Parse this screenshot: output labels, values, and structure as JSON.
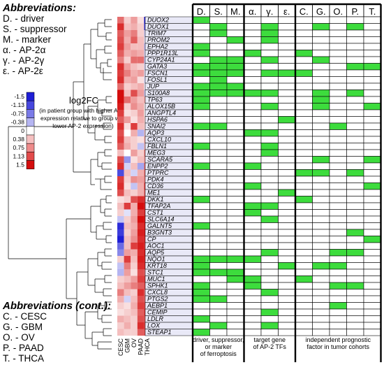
{
  "abbreviations": {
    "title": "Abbreviations:",
    "items": [
      "D. - driver",
      "S. - suppressor",
      "M. - marker",
      "α. - AP-2α",
      "γ. - AP-2γ",
      "ε. - AP-2ε"
    ]
  },
  "abbreviations_cont": {
    "title": "Abbreviations (cont.):",
    "items": [
      "C. - CESC",
      "G. - GBM",
      "O. - OV",
      "P. - PAAD",
      "T. - THCA"
    ]
  },
  "legend": {
    "title": "log2FC",
    "note": "(in patient group with higher AP-2 expression relative to group with lower AP-2 expression)",
    "ticks": [
      "-1.5",
      "-1.13",
      "-0.75",
      "-0.38",
      "0",
      "0.38",
      "0.75",
      "1.13",
      "1.5"
    ],
    "colors": [
      "#1f1fd6",
      "#4747de",
      "#7a7ae8",
      "#b5b5f2",
      "#ffffff",
      "#f5c0c0",
      "#ee8a8a",
      "#e24a4a",
      "#d40d0d"
    ]
  },
  "colors": {
    "green": "#3ddc3d",
    "red_strong": "#d40d0d",
    "blue_strong": "#1f1fd6"
  },
  "chart_data": {
    "type": "heatmap",
    "heatmap_columns": [
      "CESC",
      "GBM",
      "OV",
      "PAAD",
      "THCA"
    ],
    "genes": [
      "DUOX2",
      "DUOX1",
      "TRIM7",
      "PROM2",
      "EPHA2",
      "PPP1R13L",
      "CYP24A1",
      "GATA3",
      "FSCN1",
      "FOSL1",
      "JUP",
      "S100A8",
      "TP63",
      "ALOX15B",
      "ANGPTL4",
      "HSPA6",
      "SNAI2",
      "AQP3",
      "CXCL10",
      "FBLN1",
      "MEG3",
      "SCARA5",
      "ENPP2",
      "PTPRC",
      "PDK4",
      "CD36",
      "ME1",
      "DKK1",
      "TFAP2A",
      "CST1",
      "SLC6A14",
      "GALNT5",
      "B3GNT3",
      "CP",
      "AOC1",
      "AQP5",
      "NQO1",
      "KRT18",
      "STC1",
      "MUC1",
      "SPHK1",
      "CXCL8",
      "PTGS2",
      "AEBP1",
      "CEMIP",
      "LDLR",
      "LOX",
      "STEAP1"
    ],
    "log2fc": [
      [
        0.9,
        0.3,
        0.6,
        0.2,
        -1.5
      ],
      [
        1.3,
        0.4,
        0.5,
        0.3,
        -1.3
      ],
      [
        1.0,
        0.6,
        0.8,
        0.3,
        -0.4
      ],
      [
        1.1,
        0.5,
        1.0,
        0.4,
        -0.2
      ],
      [
        1.2,
        0.6,
        0.4,
        0.4,
        -0.5
      ],
      [
        1.0,
        0.5,
        0.6,
        0.5,
        -0.3
      ],
      [
        0.8,
        0.3,
        0.9,
        0.9,
        -0.4
      ],
      [
        1.3,
        0.6,
        0.4,
        0.3,
        -0.3
      ],
      [
        1.2,
        0.8,
        0.5,
        0.6,
        -0.2
      ],
      [
        1.3,
        0.5,
        0.6,
        0.2,
        -0.3
      ],
      [
        0.9,
        0.3,
        0.4,
        0.5,
        -0.1
      ],
      [
        1.5,
        0.4,
        1.1,
        0.6,
        -0.4
      ],
      [
        1.5,
        0.9,
        0.6,
        0.4,
        0.6
      ],
      [
        1.4,
        0.3,
        0.7,
        0.5,
        0.1
      ],
      [
        1.2,
        0.2,
        0.3,
        0.6,
        0.0
      ],
      [
        1.0,
        0.6,
        0.2,
        0.5,
        0.3
      ],
      [
        1.3,
        0.2,
        1.2,
        0.4,
        0.3
      ],
      [
        1.1,
        0.0,
        0.5,
        -0.5,
        0.4
      ],
      [
        1.2,
        0.4,
        0.3,
        0.2,
        0.6
      ],
      [
        1.0,
        0.5,
        0.3,
        -0.4,
        0.5
      ],
      [
        0.4,
        0.0,
        0.6,
        0.3,
        0.9
      ],
      [
        1.1,
        -0.7,
        0.2,
        0.4,
        0.7
      ],
      [
        1.3,
        -0.3,
        0.4,
        -0.6,
        1.0
      ],
      [
        -1.2,
        0.4,
        -0.3,
        0.5,
        1.0
      ],
      [
        1.2,
        0.3,
        0.7,
        0.6,
        0.9
      ],
      [
        1.3,
        0.2,
        -0.4,
        0.5,
        1.3
      ],
      [
        1.1,
        0.4,
        0.3,
        0.5,
        1.1
      ],
      [
        0.2,
        0.3,
        1.1,
        1.3,
        1.3
      ],
      [
        0.4,
        1.2,
        0.5,
        1.5,
        1.4
      ],
      [
        0.3,
        -0.2,
        0.5,
        1.2,
        1.4
      ],
      [
        -0.4,
        0.3,
        0.6,
        1.5,
        1.5
      ],
      [
        -1.4,
        0.4,
        0.5,
        1.3,
        1.5
      ],
      [
        -1.3,
        0.3,
        0.6,
        1.4,
        1.5
      ],
      [
        -1.5,
        0.4,
        0.7,
        1.3,
        1.4
      ],
      [
        -1.0,
        0.4,
        1.2,
        1.4,
        1.3
      ],
      [
        -0.8,
        0.6,
        0.5,
        1.3,
        1.5
      ],
      [
        0.3,
        1.2,
        0.4,
        1.4,
        1.4
      ],
      [
        -0.4,
        0.8,
        0.3,
        1.3,
        1.4
      ],
      [
        -0.5,
        0.6,
        0.2,
        1.1,
        1.0
      ],
      [
        0.3,
        0.4,
        0.6,
        1.2,
        1.3
      ],
      [
        0.4,
        0.6,
        0.8,
        1.0,
        1.2
      ],
      [
        0.8,
        0.4,
        0.3,
        1.3,
        0.9
      ],
      [
        0.5,
        -0.3,
        0.4,
        1.1,
        1.0
      ],
      [
        0.3,
        0.2,
        0.5,
        1.2,
        1.2
      ],
      [
        0.2,
        0.3,
        0.4,
        1.0,
        1.3
      ],
      [
        0.5,
        0.4,
        0.3,
        1.1,
        1.1
      ],
      [
        0.3,
        0.5,
        0.3,
        1.3,
        1.2
      ],
      [
        0.4,
        0.3,
        0.3,
        1.0,
        1.1
      ]
    ],
    "matrix_columns": [
      "D.",
      "S.",
      "M.",
      "α.",
      "γ.",
      "ε.",
      "C.",
      "G.",
      "O.",
      "P.",
      "T."
    ],
    "matrix_groups": [
      "driver, suppressor, or marker of ferroptosis",
      "target gene of AP-2 TFs",
      "independent prognostic factor in tumor cohorts"
    ],
    "matrix": [
      [
        1,
        0,
        0,
        0,
        0,
        0,
        0,
        0,
        0,
        0,
        0
      ],
      [
        0,
        1,
        0,
        0,
        1,
        0,
        0,
        1,
        0,
        1,
        0
      ],
      [
        0,
        1,
        0,
        0,
        1,
        0,
        0,
        0,
        0,
        0,
        0
      ],
      [
        0,
        0,
        1,
        0,
        1,
        0,
        0,
        0,
        0,
        0,
        0
      ],
      [
        1,
        0,
        0,
        0,
        0,
        0,
        0,
        0,
        0,
        0,
        0
      ],
      [
        1,
        0,
        0,
        1,
        0,
        0,
        1,
        0,
        0,
        0,
        0
      ],
      [
        0,
        1,
        1,
        0,
        1,
        0,
        0,
        1,
        0,
        0,
        0
      ],
      [
        1,
        1,
        1,
        0,
        0,
        0,
        0,
        0,
        0,
        1,
        1
      ],
      [
        1,
        1,
        1,
        0,
        1,
        1,
        1,
        0,
        0,
        0,
        0
      ],
      [
        0,
        1,
        0,
        0,
        0,
        0,
        0,
        0,
        0,
        0,
        0
      ],
      [
        1,
        1,
        1,
        0,
        0,
        0,
        0,
        0,
        0,
        0,
        0
      ],
      [
        1,
        1,
        1,
        1,
        1,
        0,
        0,
        1,
        0,
        1,
        0
      ],
      [
        1,
        0,
        0,
        0,
        0,
        0,
        0,
        1,
        0,
        0,
        0
      ],
      [
        1,
        0,
        0,
        0,
        1,
        0,
        0,
        1,
        0,
        0,
        1
      ],
      [
        0,
        0,
        0,
        0,
        0,
        0,
        0,
        0,
        0,
        0,
        0
      ],
      [
        0,
        0,
        0,
        0,
        0,
        1,
        0,
        0,
        0,
        0,
        0
      ],
      [
        1,
        1,
        0,
        0,
        0,
        0,
        0,
        0,
        1,
        0,
        0
      ],
      [
        0,
        0,
        0,
        1,
        1,
        0,
        0,
        0,
        0,
        0,
        0
      ],
      [
        0,
        0,
        0,
        0,
        0,
        0,
        0,
        0,
        0,
        0,
        0
      ],
      [
        1,
        0,
        0,
        0,
        1,
        0,
        0,
        0,
        0,
        0,
        0
      ],
      [
        0,
        0,
        0,
        0,
        1,
        0,
        0,
        0,
        0,
        0,
        0
      ],
      [
        0,
        0,
        0,
        0,
        0,
        0,
        0,
        1,
        0,
        0,
        1
      ],
      [
        1,
        0,
        0,
        1,
        0,
        0,
        0,
        0,
        0,
        0,
        0
      ],
      [
        0,
        0,
        0,
        0,
        0,
        0,
        1,
        1,
        0,
        1,
        0
      ],
      [
        0,
        0,
        0,
        0,
        0,
        0,
        0,
        0,
        0,
        0,
        0
      ],
      [
        0,
        0,
        0,
        1,
        0,
        0,
        0,
        0,
        0,
        0,
        1
      ],
      [
        0,
        0,
        0,
        0,
        0,
        1,
        0,
        0,
        0,
        0,
        0
      ],
      [
        1,
        0,
        0,
        0,
        0,
        0,
        1,
        0,
        0,
        0,
        0
      ],
      [
        0,
        0,
        0,
        1,
        1,
        0,
        0,
        0,
        0,
        0,
        0
      ],
      [
        0,
        0,
        0,
        1,
        0,
        0,
        0,
        0,
        0,
        0,
        0
      ],
      [
        0,
        0,
        0,
        0,
        1,
        0,
        0,
        0,
        0,
        0,
        0
      ],
      [
        1,
        0,
        0,
        0,
        0,
        0,
        0,
        0,
        0,
        0,
        0
      ],
      [
        0,
        0,
        0,
        0,
        0,
        0,
        0,
        0,
        0,
        1,
        0
      ],
      [
        0,
        0,
        0,
        0,
        0,
        0,
        0,
        0,
        0,
        0,
        1
      ],
      [
        0,
        0,
        0,
        0,
        0,
        0,
        0,
        0,
        0,
        0,
        0
      ],
      [
        0,
        0,
        0,
        0,
        1,
        0,
        0,
        0,
        1,
        1,
        0
      ],
      [
        1,
        1,
        1,
        1,
        0,
        0,
        0,
        0,
        0,
        0,
        0
      ],
      [
        1,
        0,
        0,
        0,
        0,
        1,
        0,
        1,
        1,
        0,
        0
      ],
      [
        1,
        1,
        1,
        0,
        0,
        0,
        0,
        0,
        0,
        0,
        0
      ],
      [
        0,
        0,
        1,
        1,
        0,
        0,
        1,
        0,
        0,
        0,
        0
      ],
      [
        1,
        0,
        0,
        1,
        0,
        0,
        0,
        0,
        1,
        1,
        0
      ],
      [
        1,
        0,
        0,
        0,
        1,
        0,
        0,
        0,
        0,
        0,
        0
      ],
      [
        1,
        1,
        0,
        0,
        0,
        0,
        0,
        0,
        0,
        0,
        0
      ],
      [
        0,
        0,
        0,
        0,
        0,
        0,
        0,
        0,
        1,
        0,
        0
      ],
      [
        0,
        0,
        0,
        0,
        1,
        0,
        0,
        0,
        0,
        0,
        0
      ],
      [
        1,
        0,
        0,
        0,
        0,
        0,
        0,
        0,
        0,
        0,
        0
      ],
      [
        0,
        1,
        0,
        0,
        1,
        0,
        0,
        0,
        0,
        0,
        0
      ],
      [
        1,
        0,
        0,
        0,
        0,
        0,
        0,
        0,
        0,
        0,
        0
      ]
    ]
  }
}
